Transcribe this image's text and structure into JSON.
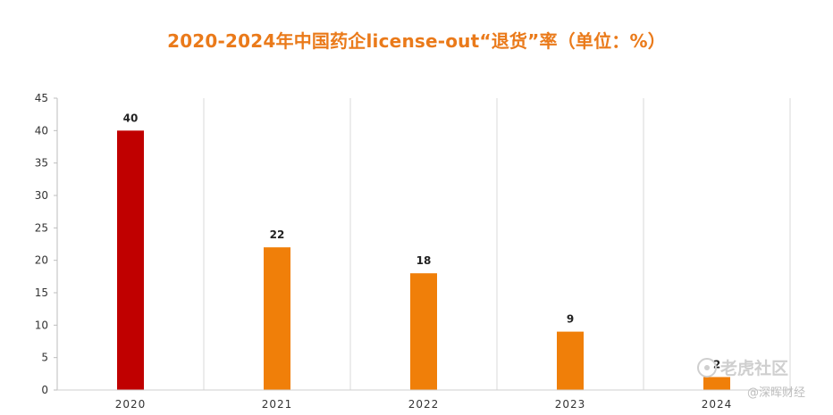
{
  "chart_data": {
    "type": "bar",
    "title": "2020-2024年中国药企license-out“退货”率（单位：%）",
    "categories": [
      "2020",
      "2021",
      "2022",
      "2023",
      "2024"
    ],
    "values": [
      40,
      22,
      18,
      9,
      2
    ],
    "data_labels": [
      "40",
      "22",
      "18",
      "9",
      "2"
    ],
    "bar_colors": [
      "#c00000",
      "#f07f09",
      "#f07f09",
      "#f07f09",
      "#f07f09"
    ],
    "ylim": [
      0,
      45
    ],
    "yticks": [
      0,
      5,
      10,
      15,
      20,
      25,
      30,
      35,
      40,
      45
    ],
    "xlabel": "",
    "ylabel": "",
    "grid": "vertical",
    "legend": "none"
  },
  "watermark": {
    "brand": "老虎社区",
    "source": "@深晖财经"
  },
  "colors": {
    "title": "#ea7a1a",
    "axis": "#cfcfcf",
    "text": "#333333"
  }
}
